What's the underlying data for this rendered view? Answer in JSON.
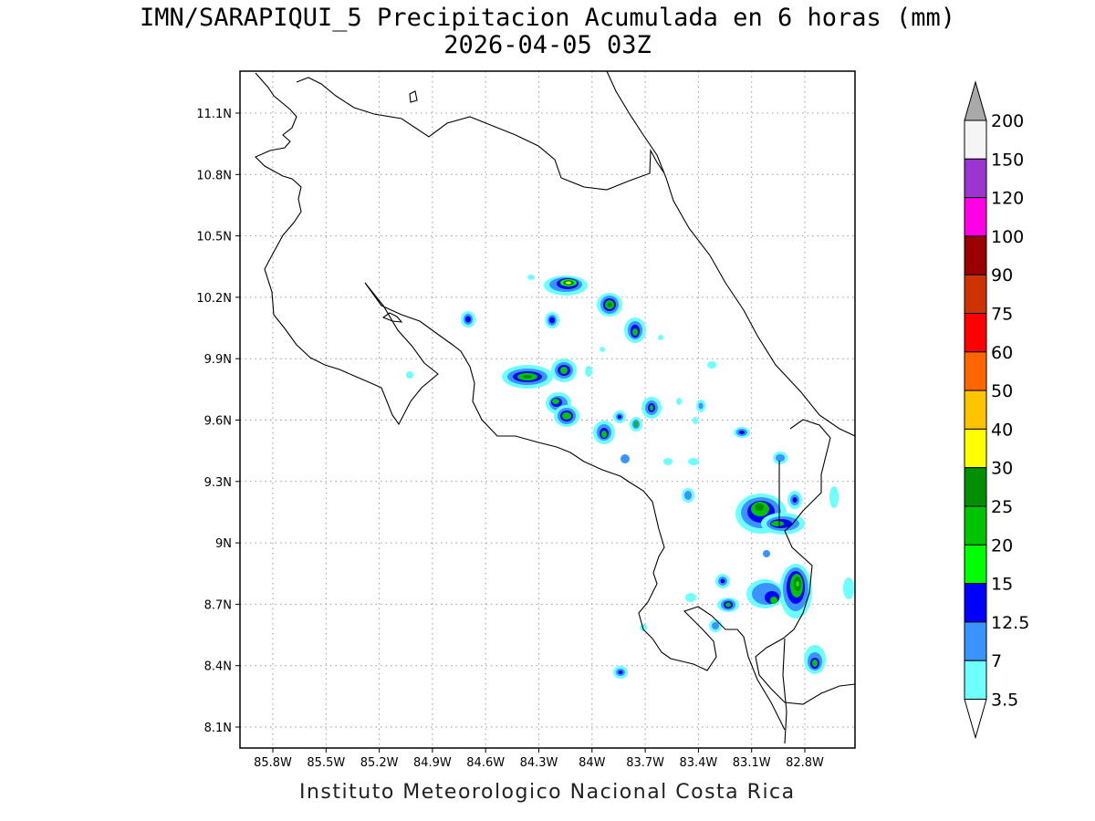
{
  "header": {
    "title": "IMN/SARAPIQUI_5 Precipitacion Acumulada en 6 horas (mm)",
    "subtitle": "2026-04-05 03Z"
  },
  "footer": {
    "credit": "Instituto Meteorologico Nacional Costa Rica"
  },
  "map": {
    "lon_range": [
      -86.0,
      -83.0
    ],
    "lat_range": [
      8.05,
      11.25
    ],
    "grid": true,
    "lon_ticks": [
      "85.8W",
      "85.5W",
      "85.2W",
      "84.9W",
      "84.6W",
      "84.3W",
      "84W",
      "83.7W",
      "83.4W",
      "83.1W",
      "82.8W"
    ],
    "lat_ticks": [
      "11.1N",
      "10.8N",
      "10.5N",
      "10.2N",
      "9.9N",
      "9.6N",
      "9.3N",
      "9N",
      "8.7N",
      "8.4N",
      "8.1N"
    ]
  },
  "legend": {
    "labels": [
      "200",
      "150",
      "120",
      "100",
      "90",
      "75",
      "60",
      "50",
      "40",
      "30",
      "25",
      "20",
      "15",
      "12.5",
      "7",
      "3.5"
    ],
    "colors": [
      "#f5f5f5",
      "#9a35d0",
      "#ff00e6",
      "#9b0000",
      "#cc3300",
      "#ff0000",
      "#ff6600",
      "#ffc400",
      "#ffff00",
      "#008f00",
      "#00c400",
      "#00ff00",
      "#0000ff",
      "#3a94ff",
      "#6effff"
    ],
    "over_color": "#a9a9a9",
    "under_color": "#ffffff"
  }
}
